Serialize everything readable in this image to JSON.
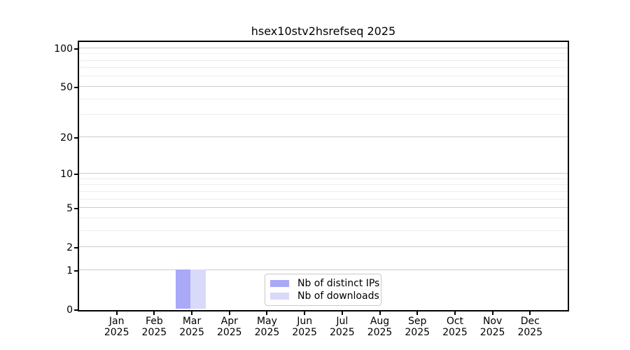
{
  "figure": {
    "title": "hsex10stv2hsrefseq 2025"
  },
  "chart_data": {
    "type": "bar",
    "title": "hsex10stv2hsrefseq 2025",
    "categories": [
      "Jan 2025",
      "Feb 2025",
      "Mar 2025",
      "Apr 2025",
      "May 2025",
      "Jun 2025",
      "Jul 2025",
      "Aug 2025",
      "Sep 2025",
      "Oct 2025",
      "Nov 2025",
      "Dec 2025"
    ],
    "series": [
      {
        "name": "Nb of distinct IPs",
        "color": "#a9a9f8",
        "values": [
          0,
          0,
          1,
          0,
          0,
          0,
          0,
          0,
          0,
          0,
          0,
          0
        ]
      },
      {
        "name": "Nb of downloads",
        "color": "#d9d9f9",
        "values": [
          0,
          0,
          1,
          0,
          0,
          0,
          0,
          0,
          0,
          0,
          0,
          0
        ]
      }
    ],
    "xlabel": "",
    "ylabel": "",
    "yscale": "log1p",
    "ylim": [
      0,
      113
    ],
    "y_major_ticks": [
      0,
      1,
      2,
      5,
      10,
      20,
      50,
      100
    ],
    "y_minor_ticks": [
      3,
      4,
      6,
      7,
      8,
      9,
      30,
      40,
      60,
      70,
      80,
      90
    ],
    "grid": {
      "axis": "y",
      "major_color": "#cccccc",
      "minor_color": "#ededed"
    },
    "legend_position": "lower center"
  },
  "legend": {
    "items": [
      {
        "label": "Nb of distinct IPs",
        "color": "#a9a9f8"
      },
      {
        "label": "Nb of downloads",
        "color": "#d9d9f9"
      }
    ]
  }
}
